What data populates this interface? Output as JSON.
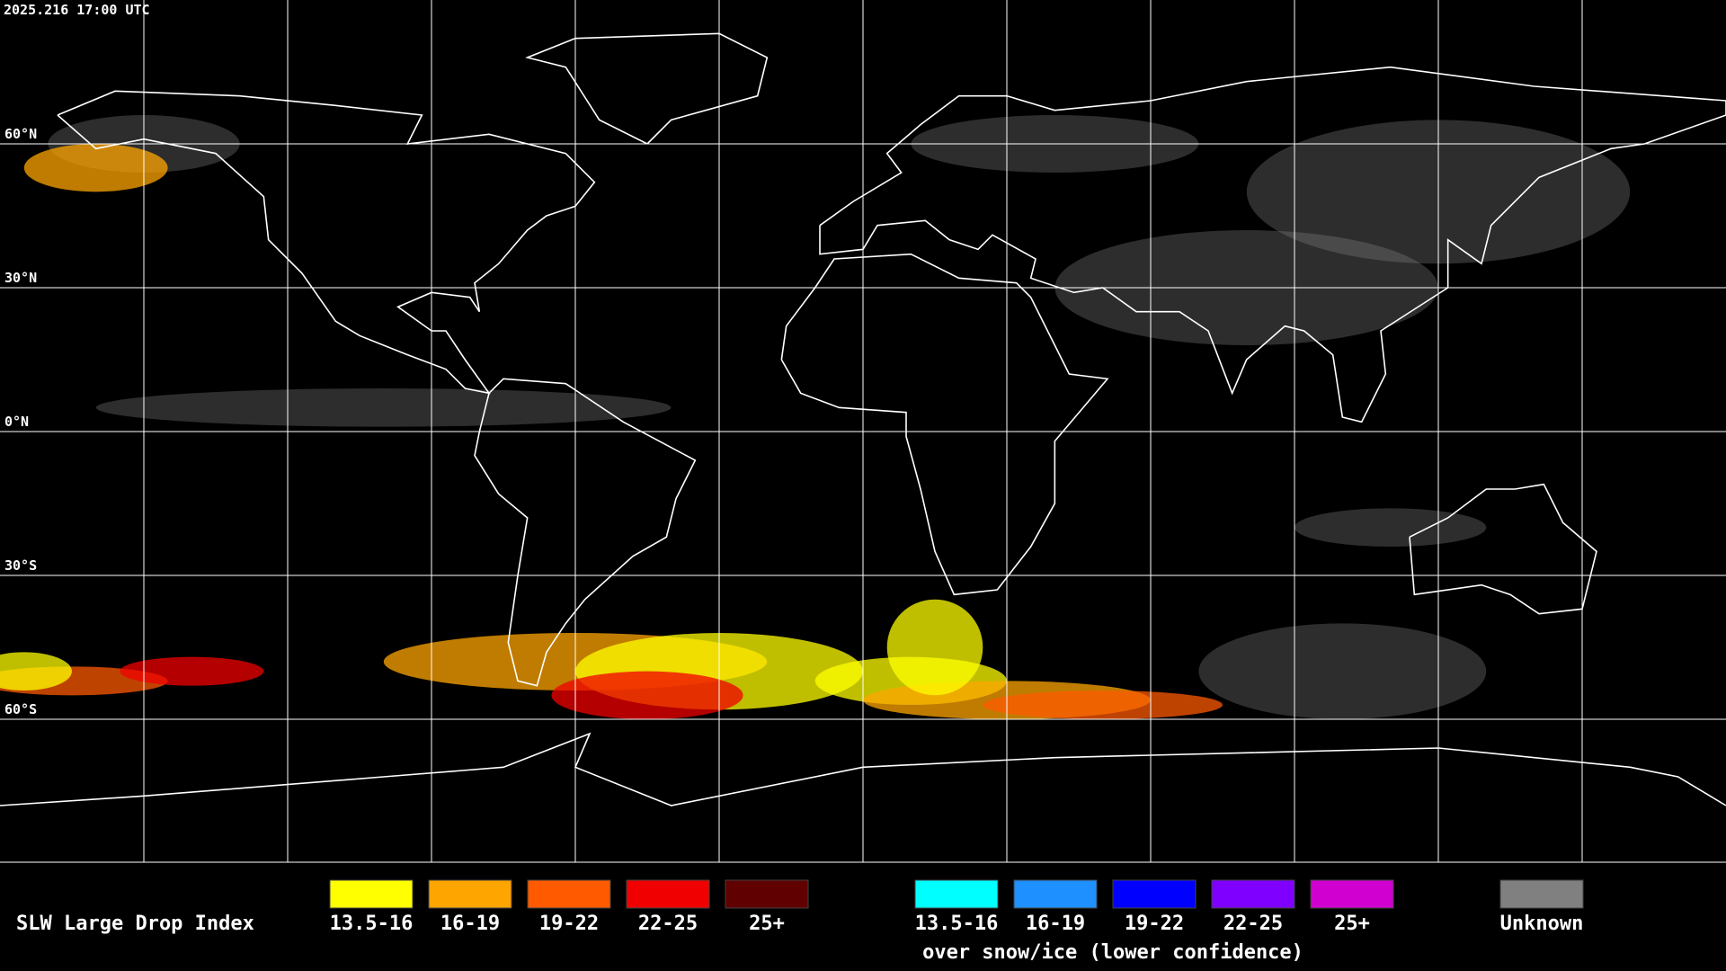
{
  "header": {
    "timestamp": "2025.216 17:00 UTC"
  },
  "map": {
    "lat_labels": [
      "60°N",
      "30°N",
      "0°N",
      "30°S",
      "60°S"
    ]
  },
  "legend": {
    "title": "SLW Large Drop Index",
    "items": [
      {
        "label": "13.5-16",
        "color": "#ffff00"
      },
      {
        "label": "16-19",
        "color": "#ffa500"
      },
      {
        "label": "19-22",
        "color": "#ff5a00"
      },
      {
        "label": "22-25",
        "color": "#f00000"
      },
      {
        "label": "25+",
        "color": "#600000"
      }
    ],
    "snow_items": [
      {
        "label": "13.5-16",
        "color": "#00ffff"
      },
      {
        "label": "16-19",
        "color": "#1e90ff"
      },
      {
        "label": "19-22",
        "color": "#0000ff"
      },
      {
        "label": "22-25",
        "color": "#7f00ff"
      },
      {
        "label": "25+",
        "color": "#d000d0"
      }
    ],
    "snow_caption": "over snow/ice (lower confidence)",
    "unknown": {
      "label": "Unknown",
      "color": "#808080"
    }
  }
}
